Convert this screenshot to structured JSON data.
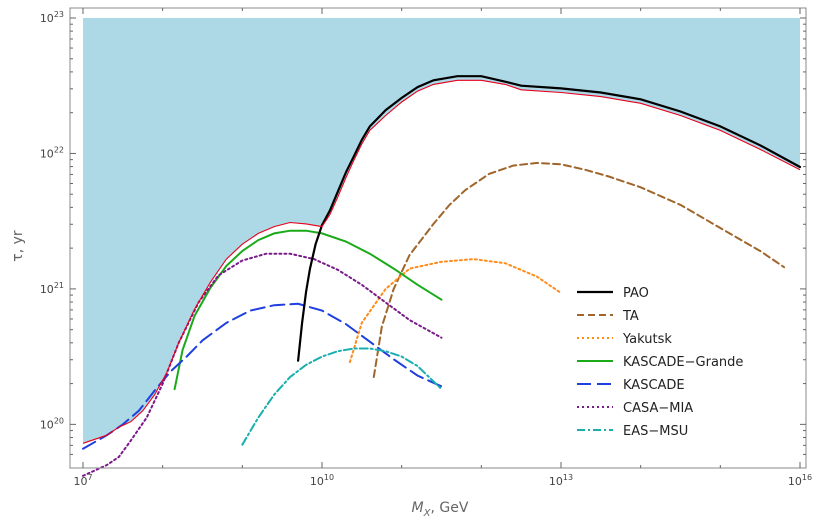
{
  "chart_data": {
    "type": "line",
    "xlabel_main": "M",
    "xlabel_sub": "X",
    "xlabel_unit": ", GeV",
    "ylabel": "τ, yr",
    "x_scale": "log",
    "y_scale": "log",
    "xlim": [
      7,
      16
    ],
    "ylim": [
      19.7,
      23.0
    ],
    "x_ticks": [
      {
        "base": "10",
        "exp": "7",
        "value": 7
      },
      {
        "base": "10",
        "exp": "10",
        "value": 10
      },
      {
        "base": "10",
        "exp": "13",
        "value": 13
      },
      {
        "base": "10",
        "exp": "16",
        "value": 16
      }
    ],
    "y_ticks": [
      {
        "base": "10",
        "exp": "20",
        "value": 20
      },
      {
        "base": "10",
        "exp": "21",
        "value": 21
      },
      {
        "base": "10",
        "exp": "22",
        "value": 22
      },
      {
        "base": "10",
        "exp": "23",
        "value": 23
      }
    ],
    "shaded_region": {
      "color": "#add8e6",
      "top": 23.0
    },
    "envelope_color": "#e8001c",
    "envelope": [
      [
        7.0,
        19.86
      ],
      [
        7.3,
        19.92
      ],
      [
        7.45,
        19.98
      ],
      [
        7.6,
        20.02
      ],
      [
        7.75,
        20.1
      ],
      [
        7.9,
        20.22
      ],
      [
        8.05,
        20.38
      ],
      [
        8.2,
        20.6
      ],
      [
        8.4,
        20.85
      ],
      [
        8.6,
        21.05
      ],
      [
        8.8,
        21.22
      ],
      [
        9.0,
        21.33
      ],
      [
        9.2,
        21.41
      ],
      [
        9.4,
        21.46
      ],
      [
        9.6,
        21.49
      ],
      [
        9.8,
        21.48
      ],
      [
        10.0,
        21.46
      ],
      [
        10.1,
        21.55
      ],
      [
        10.2,
        21.68
      ],
      [
        10.3,
        21.82
      ],
      [
        10.4,
        21.95
      ],
      [
        10.5,
        22.07
      ],
      [
        10.6,
        22.17
      ],
      [
        10.8,
        22.28
      ],
      [
        11.0,
        22.38
      ],
      [
        11.2,
        22.46
      ],
      [
        11.4,
        22.51
      ],
      [
        11.7,
        22.54
      ],
      [
        12.0,
        22.54
      ],
      [
        12.3,
        22.51
      ],
      [
        12.5,
        22.47
      ],
      [
        13.0,
        22.45
      ],
      [
        13.5,
        22.42
      ],
      [
        14.0,
        22.37
      ],
      [
        14.5,
        22.28
      ],
      [
        15.0,
        22.17
      ],
      [
        15.5,
        22.03
      ],
      [
        16.0,
        21.88
      ]
    ],
    "series": [
      {
        "name": "PAO",
        "color": "#000000",
        "dash": "",
        "width": 2.2,
        "points": [
          [
            9.7,
            20.47
          ],
          [
            9.75,
            20.75
          ],
          [
            9.8,
            20.98
          ],
          [
            9.85,
            21.15
          ],
          [
            9.92,
            21.33
          ],
          [
            10.0,
            21.47
          ],
          [
            10.1,
            21.58
          ],
          [
            10.2,
            21.72
          ],
          [
            10.3,
            21.86
          ],
          [
            10.4,
            21.98
          ],
          [
            10.5,
            22.1
          ],
          [
            10.6,
            22.2
          ],
          [
            10.8,
            22.32
          ],
          [
            11.0,
            22.41
          ],
          [
            11.2,
            22.49
          ],
          [
            11.4,
            22.54
          ],
          [
            11.7,
            22.57
          ],
          [
            12.0,
            22.57
          ],
          [
            12.3,
            22.53
          ],
          [
            12.5,
            22.5
          ],
          [
            13.0,
            22.48
          ],
          [
            13.5,
            22.45
          ],
          [
            14.0,
            22.4
          ],
          [
            14.5,
            22.31
          ],
          [
            15.0,
            22.2
          ],
          [
            15.5,
            22.06
          ],
          [
            16.0,
            21.9
          ]
        ]
      },
      {
        "name": "TA",
        "color": "#a0652a",
        "dash": "7,4",
        "width": 2,
        "points": [
          [
            10.65,
            20.35
          ],
          [
            10.75,
            20.72
          ],
          [
            10.9,
            21.0
          ],
          [
            11.1,
            21.25
          ],
          [
            11.4,
            21.48
          ],
          [
            11.6,
            21.62
          ],
          [
            11.8,
            21.73
          ],
          [
            12.1,
            21.85
          ],
          [
            12.4,
            21.91
          ],
          [
            12.7,
            21.93
          ],
          [
            13.0,
            21.92
          ],
          [
            13.3,
            21.88
          ],
          [
            13.6,
            21.83
          ],
          [
            14.0,
            21.75
          ],
          [
            14.5,
            21.62
          ],
          [
            15.0,
            21.45
          ],
          [
            15.5,
            21.28
          ],
          [
            15.8,
            21.16
          ]
        ]
      },
      {
        "name": "Yakutsk",
        "color": "#ff8c1a",
        "dash": "2,3",
        "width": 2,
        "points": [
          [
            10.35,
            20.46
          ],
          [
            10.5,
            20.75
          ],
          [
            10.8,
            21.0
          ],
          [
            11.1,
            21.15
          ],
          [
            11.5,
            21.2
          ],
          [
            11.9,
            21.22
          ],
          [
            12.3,
            21.19
          ],
          [
            12.7,
            21.09
          ],
          [
            13.0,
            20.97
          ]
        ]
      },
      {
        "name": "KASCADE−Grande",
        "color": "#1aaa1a",
        "dash": "",
        "width": 2,
        "points": [
          [
            8.15,
            20.26
          ],
          [
            8.25,
            20.55
          ],
          [
            8.4,
            20.8
          ],
          [
            8.6,
            21.01
          ],
          [
            8.8,
            21.17
          ],
          [
            9.0,
            21.28
          ],
          [
            9.2,
            21.36
          ],
          [
            9.4,
            21.41
          ],
          [
            9.6,
            21.43
          ],
          [
            9.8,
            21.43
          ],
          [
            10.0,
            21.41
          ],
          [
            10.3,
            21.35
          ],
          [
            10.6,
            21.26
          ],
          [
            10.9,
            21.15
          ],
          [
            11.2,
            21.03
          ],
          [
            11.5,
            20.92
          ]
        ]
      },
      {
        "name": "KASCADE",
        "color": "#1f3fdf",
        "dash": "14,6",
        "width": 2,
        "points": [
          [
            7.0,
            19.82
          ],
          [
            7.3,
            19.92
          ],
          [
            7.5,
            20.0
          ],
          [
            7.7,
            20.1
          ],
          [
            7.9,
            20.25
          ],
          [
            8.1,
            20.39
          ],
          [
            8.3,
            20.5
          ],
          [
            8.5,
            20.62
          ],
          [
            8.8,
            20.75
          ],
          [
            9.1,
            20.84
          ],
          [
            9.4,
            20.88
          ],
          [
            9.7,
            20.89
          ],
          [
            10.0,
            20.84
          ],
          [
            10.3,
            20.74
          ],
          [
            10.6,
            20.61
          ],
          [
            10.9,
            20.48
          ],
          [
            11.2,
            20.36
          ],
          [
            11.5,
            20.28
          ]
        ]
      },
      {
        "name": "CASA−MIA",
        "color": "#7a1a8a",
        "dash": "2,3",
        "width": 2,
        "points": [
          [
            7.0,
            19.62
          ],
          [
            7.3,
            19.7
          ],
          [
            7.45,
            19.76
          ],
          [
            7.6,
            19.88
          ],
          [
            7.8,
            20.05
          ],
          [
            8.0,
            20.3
          ],
          [
            8.2,
            20.6
          ],
          [
            8.45,
            20.9
          ],
          [
            8.7,
            21.1
          ],
          [
            9.0,
            21.21
          ],
          [
            9.3,
            21.26
          ],
          [
            9.6,
            21.26
          ],
          [
            9.9,
            21.22
          ],
          [
            10.2,
            21.14
          ],
          [
            10.5,
            21.03
          ],
          [
            10.8,
            20.9
          ],
          [
            11.1,
            20.77
          ],
          [
            11.5,
            20.64
          ]
        ]
      },
      {
        "name": "EAS−MSU",
        "color": "#1aafaf",
        "dash": "8,3,2,3",
        "width": 2,
        "points": [
          [
            9.0,
            19.85
          ],
          [
            9.2,
            20.05
          ],
          [
            9.4,
            20.22
          ],
          [
            9.6,
            20.35
          ],
          [
            9.8,
            20.44
          ],
          [
            10.0,
            20.5
          ],
          [
            10.2,
            20.54
          ],
          [
            10.4,
            20.56
          ],
          [
            10.6,
            20.56
          ],
          [
            10.8,
            20.54
          ],
          [
            11.0,
            20.5
          ],
          [
            11.2,
            20.43
          ],
          [
            11.5,
            20.26
          ]
        ]
      }
    ]
  }
}
